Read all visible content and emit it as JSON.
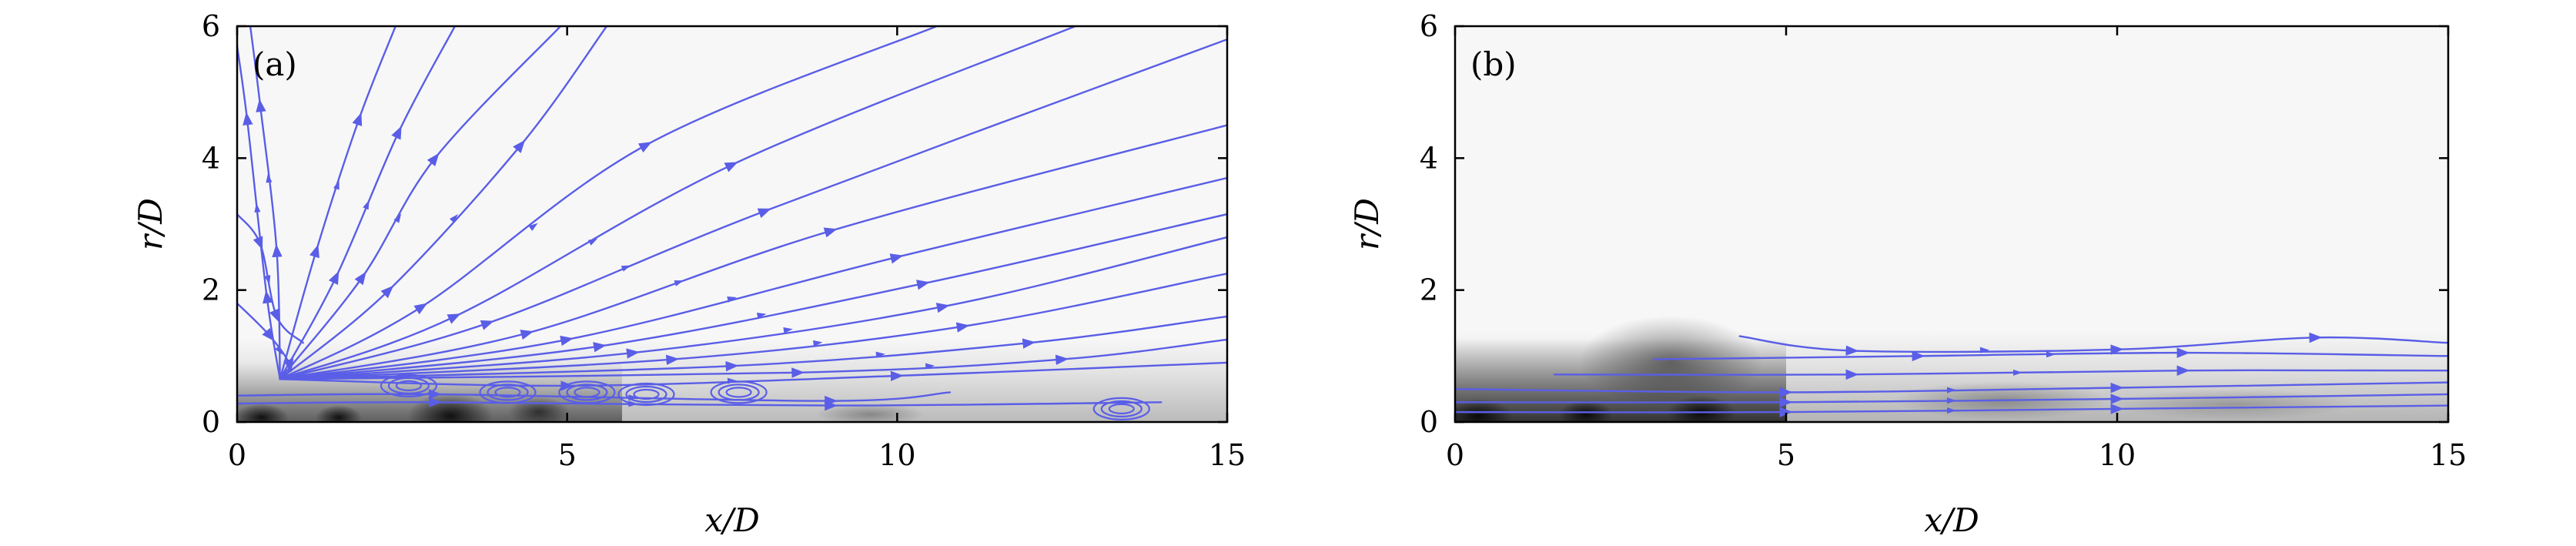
{
  "colors": {
    "streamline": "#5a5ee6",
    "frame": "#000000"
  },
  "chart_data": [
    {
      "type": "streamline-contour",
      "panel_label": "(a)",
      "xlabel": "x/D",
      "ylabel": "r/D",
      "xlim": [
        0,
        15
      ],
      "ylim": [
        0,
        6
      ],
      "xticks": [
        "0",
        "5",
        "10",
        "15"
      ],
      "yticks": [
        "0",
        "2",
        "4",
        "6"
      ],
      "streamline_color": "#5a5ee6",
      "background": "grayscale field, dark near r/D < 0.6 for x/D < 4, light elsewhere",
      "streamlines": [
        [
          [
            0.65,
            0.65
          ],
          [
            0.45,
            1.9
          ],
          [
            0.15,
            4.6
          ],
          [
            0.0,
            5.7
          ]
        ],
        [
          [
            0.65,
            0.65
          ],
          [
            0.6,
            2.6
          ],
          [
            0.35,
            4.8
          ],
          [
            0.2,
            6.0
          ]
        ],
        [
          [
            0.65,
            0.65
          ],
          [
            1.2,
            2.6
          ],
          [
            1.85,
            4.6
          ],
          [
            2.4,
            6.0
          ]
        ],
        [
          [
            0.65,
            0.65
          ],
          [
            1.5,
            2.2
          ],
          [
            2.45,
            4.4
          ],
          [
            3.3,
            6.0
          ]
        ],
        [
          [
            0.65,
            0.65
          ],
          [
            1.9,
            2.2
          ],
          [
            3.0,
            4.0
          ],
          [
            4.9,
            6.0
          ]
        ],
        [
          [
            0.65,
            0.65
          ],
          [
            2.3,
            2.0
          ],
          [
            4.3,
            4.2
          ],
          [
            5.6,
            6.0
          ]
        ],
        [
          [
            0.65,
            0.65
          ],
          [
            2.8,
            1.75
          ],
          [
            6.2,
            4.2
          ],
          [
            10.6,
            6.0
          ]
        ],
        [
          [
            0.65,
            0.65
          ],
          [
            3.3,
            1.6
          ],
          [
            7.5,
            3.9
          ],
          [
            12.7,
            6.0
          ]
        ],
        [
          [
            0.65,
            0.65
          ],
          [
            3.8,
            1.5
          ],
          [
            8.0,
            3.2
          ],
          [
            15.0,
            5.8
          ]
        ],
        [
          [
            0.65,
            0.65
          ],
          [
            4.4,
            1.35
          ],
          [
            9.0,
            2.9
          ],
          [
            15.0,
            4.5
          ]
        ],
        [
          [
            0.65,
            0.65
          ],
          [
            5.0,
            1.25
          ],
          [
            10.0,
            2.5
          ],
          [
            15.0,
            3.7
          ]
        ],
        [
          [
            0.65,
            0.65
          ],
          [
            5.5,
            1.15
          ],
          [
            10.4,
            2.1
          ],
          [
            15.0,
            3.15
          ]
        ],
        [
          [
            0.65,
            0.65
          ],
          [
            6.0,
            1.05
          ],
          [
            10.7,
            1.75
          ],
          [
            15.0,
            2.8
          ]
        ],
        [
          [
            0.65,
            0.65
          ],
          [
            6.6,
            0.95
          ],
          [
            11.0,
            1.45
          ],
          [
            15.0,
            2.25
          ]
        ],
        [
          [
            0.65,
            0.65
          ],
          [
            7.5,
            0.85
          ],
          [
            12.0,
            1.2
          ],
          [
            15.0,
            1.6
          ]
        ],
        [
          [
            0.65,
            0.65
          ],
          [
            8.5,
            0.75
          ],
          [
            12.5,
            0.95
          ],
          [
            15.0,
            1.25
          ]
        ],
        [
          [
            0.65,
            0.65
          ],
          [
            5.0,
            0.55
          ],
          [
            10.0,
            0.7
          ],
          [
            15.0,
            0.9
          ]
        ],
        [
          [
            0.0,
            0.4
          ],
          [
            3.0,
            0.42
          ],
          [
            9.0,
            0.32
          ],
          [
            10.8,
            0.45
          ]
        ],
        [
          [
            0.0,
            0.28
          ],
          [
            3.0,
            0.3
          ],
          [
            9.0,
            0.25
          ],
          [
            14.0,
            0.3
          ]
        ],
        [
          [
            0.0,
            3.15
          ],
          [
            0.35,
            2.7
          ],
          [
            0.6,
            1.6
          ],
          [
            1.0,
            1.2
          ]
        ],
        [
          [
            0.0,
            1.8
          ],
          [
            0.5,
            1.3
          ],
          [
            0.8,
            0.85
          ],
          [
            0.65,
            0.65
          ]
        ]
      ],
      "vortices": [
        [
          2.6,
          0.55
        ],
        [
          4.1,
          0.45
        ],
        [
          5.3,
          0.45
        ],
        [
          6.2,
          0.42
        ],
        [
          7.6,
          0.45
        ],
        [
          13.4,
          0.2
        ]
      ]
    },
    {
      "type": "streamline-contour",
      "panel_label": "(b)",
      "xlabel": "x/D",
      "ylabel": "r/D",
      "xlim": [
        0,
        15
      ],
      "ylim": [
        0,
        6
      ],
      "xticks": [
        "0",
        "5",
        "10",
        "15"
      ],
      "yticks": [
        "0",
        "2",
        "4",
        "6"
      ],
      "streamline_color": "#5a5ee6",
      "background": "grayscale field, dark region for r/D < 1.2 and x/D < 5, light elsewhere",
      "streamlines": [
        [
          [
            4.3,
            1.3
          ],
          [
            6.0,
            1.08
          ],
          [
            10.0,
            1.1
          ],
          [
            13.0,
            1.28
          ],
          [
            15.0,
            1.2
          ]
        ],
        [
          [
            3.0,
            0.95
          ],
          [
            7.0,
            1.0
          ],
          [
            11.0,
            1.05
          ],
          [
            15.0,
            1.0
          ]
        ],
        [
          [
            1.5,
            0.72
          ],
          [
            6.0,
            0.72
          ],
          [
            11.0,
            0.78
          ],
          [
            15.0,
            0.78
          ]
        ],
        [
          [
            0.0,
            0.5
          ],
          [
            5.0,
            0.45
          ],
          [
            10.0,
            0.52
          ],
          [
            15.0,
            0.6
          ]
        ],
        [
          [
            0.0,
            0.3
          ],
          [
            5.0,
            0.3
          ],
          [
            10.0,
            0.35
          ],
          [
            15.0,
            0.42
          ]
        ],
        [
          [
            0.0,
            0.15
          ],
          [
            5.0,
            0.15
          ],
          [
            10.0,
            0.2
          ],
          [
            15.0,
            0.25
          ]
        ]
      ],
      "vortices": []
    }
  ]
}
